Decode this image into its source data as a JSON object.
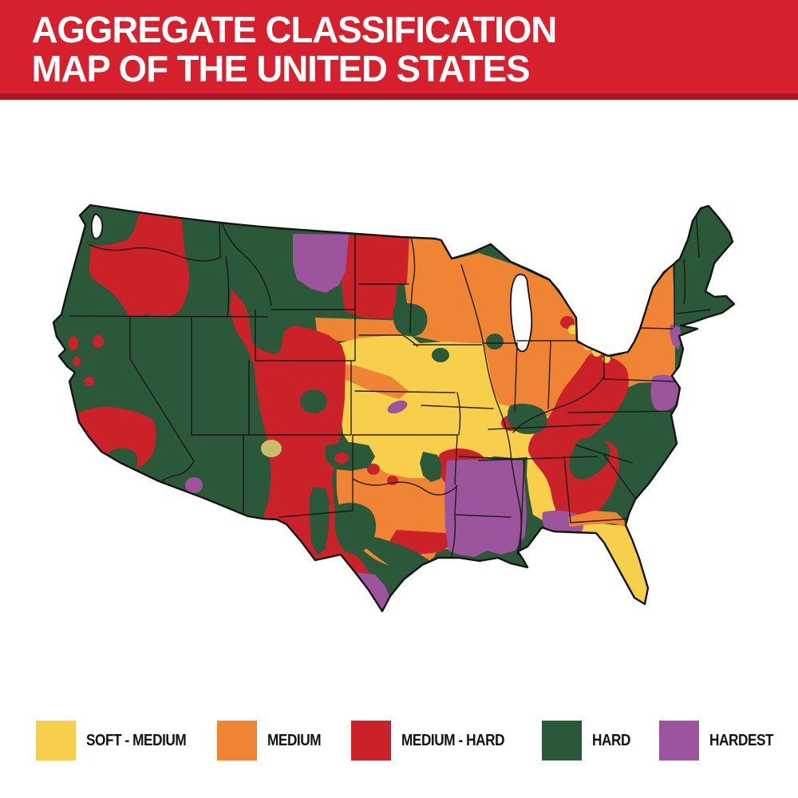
{
  "header": {
    "title_line1": "AGGREGATE CLASSIFICATION",
    "title_line2": "MAP OF THE UNITED STATES"
  },
  "legend": {
    "items": [
      {
        "label": "SOFT - MEDIUM",
        "color_key": "soft_medium"
      },
      {
        "label": "MEDIUM",
        "color_key": "medium"
      },
      {
        "label": "MEDIUM - HARD",
        "color_key": "medium_hard"
      },
      {
        "label": "HARD",
        "color_key": "hard"
      },
      {
        "label": "HARDEST",
        "color_key": "hardest"
      }
    ]
  },
  "map": {
    "subject": "Contiguous United States choropleth of aggregate hardness classes",
    "classes": [
      "SOFT - MEDIUM",
      "MEDIUM",
      "MEDIUM - HARD",
      "HARD",
      "HARDEST"
    ]
  },
  "colors": {
    "banner": "#D7202D",
    "banner_strip": "#A81722",
    "title_text": "#FFFFFF",
    "legend_text": "#111111",
    "soft_medium": "#F7CF4B",
    "medium": "#EE8434",
    "medium_hard": "#CB222A",
    "hard": "#2B5839",
    "hardest": "#9C549C",
    "olive_spot": "#C9BC6A",
    "map_outline": "#141414",
    "water": "#FFFFFF",
    "background": "#FFFFFF"
  }
}
